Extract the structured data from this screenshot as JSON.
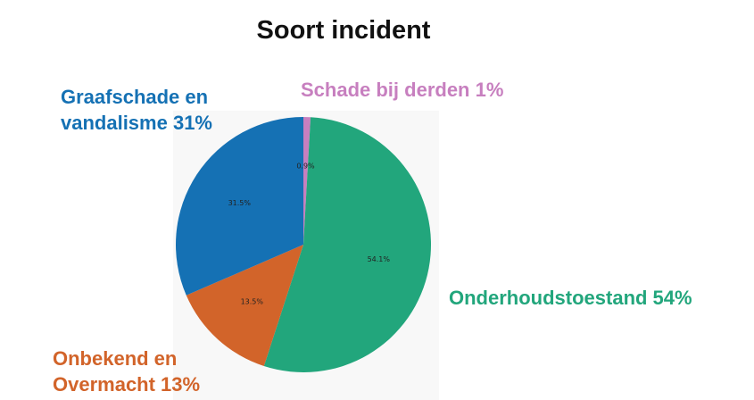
{
  "chart_data": {
    "type": "pie",
    "title": "Soort incident",
    "slices": [
      {
        "label_lines": [
          "Schade bij derden 1%"
        ],
        "inner_label": "0.9%",
        "value": 0.9,
        "color": "#c77fbf"
      },
      {
        "label_lines": [
          "Onderhoudstoestand 54%"
        ],
        "inner_label": "54.1%",
        "value": 54.1,
        "color": "#22a67c"
      },
      {
        "label_lines": [
          "Onbekend en",
          "Overmacht 13%"
        ],
        "inner_label": "13.5%",
        "value": 13.5,
        "color": "#d2642a"
      },
      {
        "label_lines": [
          "Graafschade en",
          "vandalisme 31%"
        ],
        "inner_label": "31.5%",
        "value": 31.5,
        "color": "#1571b4"
      }
    ],
    "start_angle_deg": 90,
    "direction": "clockwise"
  }
}
